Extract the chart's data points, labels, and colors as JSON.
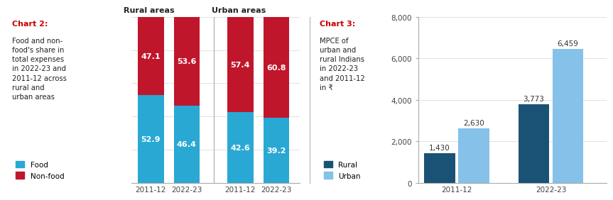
{
  "chart2": {
    "title": "Chart 2:",
    "title_color": "#cc0000",
    "description": "Food and non-\nfood's share in\ntotal expenses\nin 2022-23 and\n2011-12 across\nrural and\nurban areas",
    "groups": [
      "Rural areas",
      "Urban areas"
    ],
    "years": [
      "2011-12",
      "2022-23",
      "2011-12",
      "2022-23"
    ],
    "food_values": [
      52.9,
      46.4,
      42.6,
      39.2
    ],
    "nonfood_values": [
      47.1,
      53.6,
      57.4,
      60.8
    ],
    "food_color": "#29a8d4",
    "nonfood_color": "#c0162c",
    "legend_food": "Food",
    "legend_nonfood": "Non-food"
  },
  "chart3": {
    "title": "Chart 3:",
    "title_color": "#cc0000",
    "description": "MPCE of\nurban and\nrural Indians\nin 2022-23\nand 2011-12\nin ₹",
    "years": [
      "2011-12",
      "2022-23"
    ],
    "rural_values": [
      1430,
      3773
    ],
    "urban_values": [
      2630,
      6459
    ],
    "rural_color": "#1a5276",
    "urban_color": "#85c1e9",
    "ylim": [
      0,
      8000
    ],
    "yticks": [
      0,
      2000,
      4000,
      6000,
      8000
    ],
    "legend_rural": "Rural",
    "legend_urban": "Urban"
  },
  "background_color": "#ffffff",
  "divider_color": "#bbbbbb"
}
